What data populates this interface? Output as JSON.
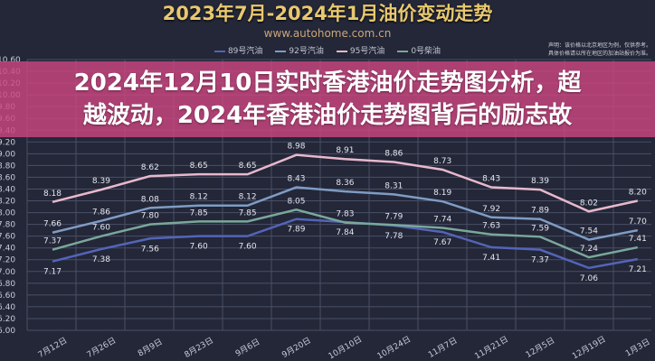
{
  "headline": {
    "line1": "2024年12月10日实时香港油价走势图分析，超",
    "line2": "越波动，2024年香港油价走势图背后的励志故"
  },
  "chart_data": {
    "type": "line",
    "title": "2023年7月-2024年1月油价变动走势",
    "source": "www.autohome.com.cn",
    "note": [
      "声明：该价格以北京地区为例，仅供参考。",
      "具体价格请以所在地区的加油站报价为准。"
    ],
    "categories": [
      "7月12日",
      "7月26日",
      "8月9日",
      "8月23日",
      "9月6日",
      "9月20日",
      "10月10日",
      "10月24日",
      "11月7日",
      "11月21日",
      "12月5日",
      "12月19日",
      "1月3日"
    ],
    "ylim": [
      6.0,
      10.6
    ],
    "yticks": [
      "6.00",
      "6.20",
      "6.40",
      "6.60",
      "6.80",
      "7.00",
      "7.20",
      "7.40",
      "7.60",
      "7.80",
      "8.00",
      "8.20",
      "8.40",
      "8.60",
      "8.80",
      "9.00",
      "9.20",
      "9.40",
      "9.60",
      "9.80",
      "10.00",
      "10.20",
      "10.40",
      "10.60"
    ],
    "grid": true,
    "legend_position": "top",
    "series": [
      {
        "name": "89号汽油",
        "color": "#5464b8",
        "values": [
          7.17,
          7.38,
          7.56,
          7.6,
          7.6,
          7.89,
          7.84,
          7.78,
          7.67,
          7.41,
          7.37,
          7.06,
          7.21
        ]
      },
      {
        "name": "92号汽油",
        "color": "#7f9cc4",
        "values": [
          7.66,
          7.86,
          8.08,
          8.12,
          8.12,
          8.43,
          8.36,
          8.31,
          8.19,
          7.92,
          7.89,
          7.54,
          7.7
        ]
      },
      {
        "name": "95号汽油",
        "color": "#e8b8cc",
        "values": [
          8.18,
          8.39,
          8.62,
          8.65,
          8.65,
          8.98,
          8.91,
          8.86,
          8.73,
          8.43,
          8.39,
          8.02,
          8.2
        ]
      },
      {
        "name": "0号柴油",
        "color": "#7aa89a",
        "values": [
          7.37,
          7.6,
          7.8,
          7.85,
          7.85,
          8.05,
          7.83,
          7.79,
          7.74,
          7.63,
          7.59,
          7.24,
          7.41
        ]
      }
    ]
  }
}
